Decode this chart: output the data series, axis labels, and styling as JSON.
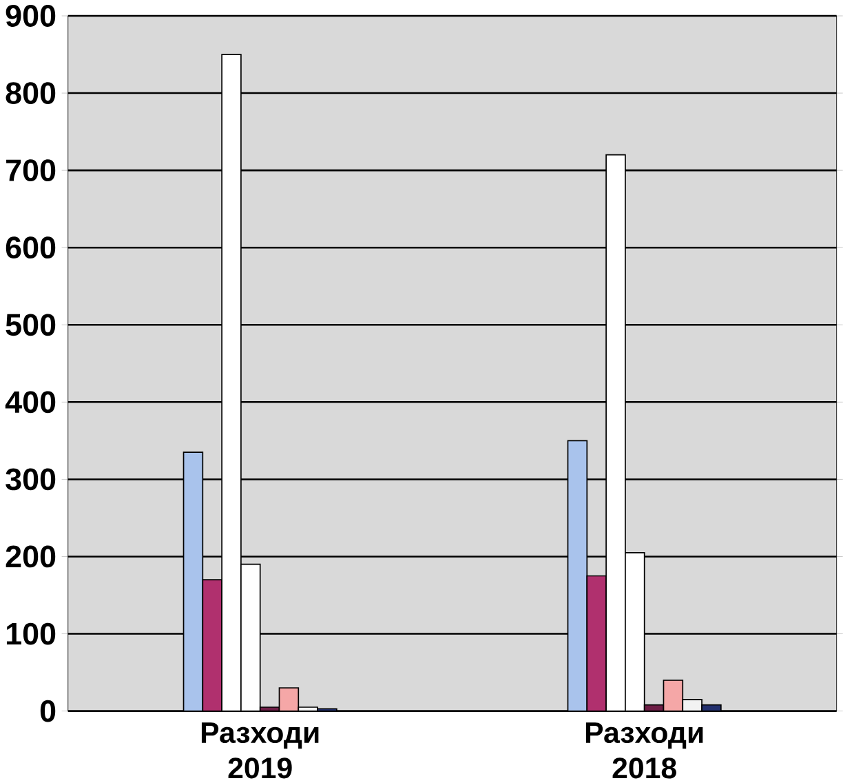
{
  "chart_data": {
    "type": "bar",
    "categories": [
      "Разходи 2019",
      "Разходи 2018"
    ],
    "ylim": [
      0,
      900
    ],
    "yticks": [
      0,
      100,
      200,
      300,
      400,
      500,
      600,
      700,
      800,
      900
    ],
    "grid": "y",
    "series": [
      {
        "color": "#a9c3ec",
        "values": [
          335,
          350
        ]
      },
      {
        "color": "#b0306e",
        "values": [
          170,
          175
        ]
      },
      {
        "color": "#ffffff",
        "values": [
          850,
          720
        ]
      },
      {
        "color": "#ffffff",
        "values": [
          190,
          205
        ]
      },
      {
        "color": "#6e1e46",
        "values": [
          5,
          8
        ]
      },
      {
        "color": "#f5a7a7",
        "values": [
          30,
          40
        ]
      },
      {
        "color": "#f2f2f2",
        "values": [
          5,
          15
        ]
      },
      {
        "color": "#23306e",
        "values": [
          3,
          8
        ]
      }
    ]
  }
}
